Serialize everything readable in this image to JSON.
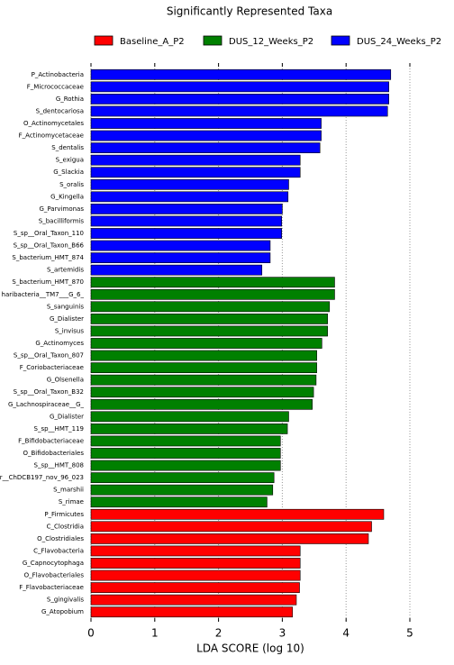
{
  "chart_data": {
    "type": "barh",
    "title": "Significantly Represented Taxa",
    "x_label": "LDA SCORE (log 10)",
    "categories": [
      "P_Actinobacteria",
      "F_Micrococcaceae",
      "G_Rothia",
      "S_dentocariosa",
      "O_Actinomycetales",
      "F_Actinomycetaceae",
      "S_dentalis",
      "S_exigua",
      "G_Slackia",
      "S_oralis",
      "G_Kingella",
      "G_Parvimonas",
      "S_bacilliformis",
      "S_sp__Oral_Taxon_110",
      "S_sp__Oral_Taxon_B66",
      "S_bacterium_HMT_874",
      "S_artemidis",
      "S_bacterium_HMT_870",
      "haribacteria__TM7___G_6_",
      "S_sanguinis",
      "G_Dialister",
      "S_invisus",
      "G_Actinomyces",
      "S_sp__Oral_Taxon_807",
      "F_Coriobacteriaceae",
      "G_Olsenella",
      "S_sp__Oral_Taxon_B32",
      "G_Lachnospiraceae__G_",
      "G_Dialister",
      "S_sp__HMT_119",
      "F_Bifidobacteriaceae",
      "O_Bifidobacteriales",
      "S_sp__HMT_808",
      "r__ChDCB197_nov_96_023",
      "S_marshii",
      "S_rimae",
      "P_Firmicutes",
      "C_Clostridia",
      "O_Clostridiales",
      "C_Flavobacteria",
      "G_Capnocytophaga",
      "O_Flavobacteriales",
      "F_Flavobacteriaceae",
      "S_gingivalis",
      "G_Atopobium"
    ],
    "series": [
      {
        "name": "Baseline_A_P2",
        "color": "#ff0000",
        "values": [
          null,
          null,
          null,
          null,
          null,
          null,
          null,
          null,
          null,
          null,
          null,
          null,
          null,
          null,
          null,
          null,
          null,
          null,
          null,
          null,
          null,
          null,
          null,
          null,
          null,
          null,
          null,
          null,
          null,
          null,
          null,
          null,
          null,
          null,
          null,
          null,
          4.59,
          4.4,
          4.35,
          3.28,
          3.28,
          3.28,
          3.27,
          3.22,
          3.16
        ]
      },
      {
        "name": "DUS_12_Weeks_P2",
        "color": "#008000",
        "values": [
          null,
          null,
          null,
          null,
          null,
          null,
          null,
          null,
          null,
          null,
          null,
          null,
          null,
          null,
          null,
          null,
          null,
          3.82,
          3.82,
          3.74,
          3.71,
          3.71,
          3.62,
          3.54,
          3.54,
          3.53,
          3.49,
          3.47,
          3.1,
          3.08,
          2.97,
          2.97,
          2.97,
          2.87,
          2.85,
          2.76,
          null,
          null,
          null,
          null,
          null,
          null,
          null,
          null,
          null
        ]
      },
      {
        "name": "DUS_24_Weeks_P2",
        "color": "#0000ff",
        "values": [
          4.7,
          4.67,
          4.67,
          4.65,
          3.61,
          3.61,
          3.59,
          3.28,
          3.28,
          3.1,
          3.09,
          3.0,
          2.99,
          2.99,
          2.81,
          2.81,
          2.68,
          null,
          null,
          null,
          null,
          null,
          null,
          null,
          null,
          null,
          null,
          null,
          null,
          null,
          null,
          null,
          null,
          null,
          null,
          null,
          null,
          null,
          null,
          null,
          null,
          null,
          null,
          null,
          null
        ]
      }
    ],
    "xlim": [
      0,
      5
    ],
    "xticks": [
      0,
      1,
      2,
      3,
      4,
      5
    ],
    "grid": true
  }
}
